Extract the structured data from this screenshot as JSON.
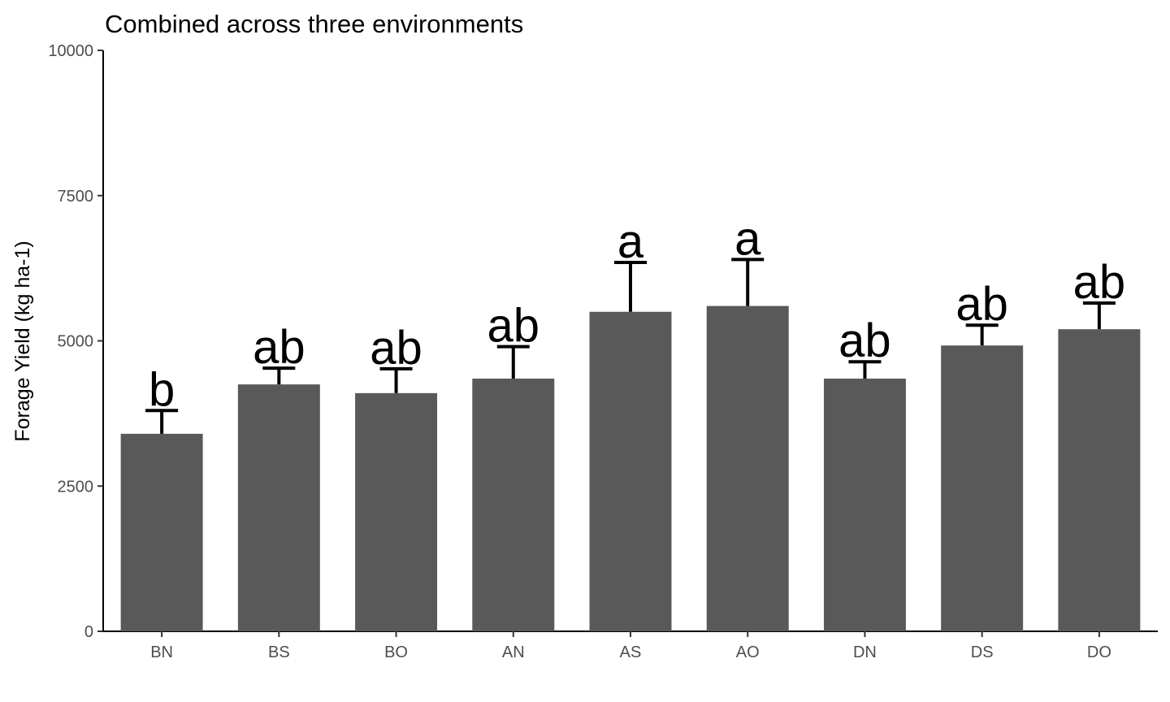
{
  "chart_data": {
    "type": "bar",
    "title": "Combined across three environments",
    "xlabel": "",
    "ylabel": "Forage Yield (kg ha-1)",
    "ylim": [
      0,
      10000
    ],
    "yticks": [
      0,
      2500,
      5000,
      7500,
      10000
    ],
    "grid": false,
    "categories": [
      "BN",
      "BS",
      "BO",
      "AN",
      "AS",
      "AO",
      "DN",
      "DS",
      "DO"
    ],
    "values": [
      3400,
      4250,
      4100,
      4350,
      5500,
      5600,
      4350,
      4920,
      5200
    ],
    "error_upper": [
      3800,
      4530,
      4520,
      4900,
      6350,
      6400,
      4640,
      5270,
      5650
    ],
    "letters": [
      "b",
      "ab",
      "ab",
      "ab",
      "a",
      "a",
      "ab",
      "ab",
      "ab"
    ],
    "colors": {
      "bar": "#595959",
      "errorbar": "#000000",
      "axis": "#000000"
    }
  }
}
